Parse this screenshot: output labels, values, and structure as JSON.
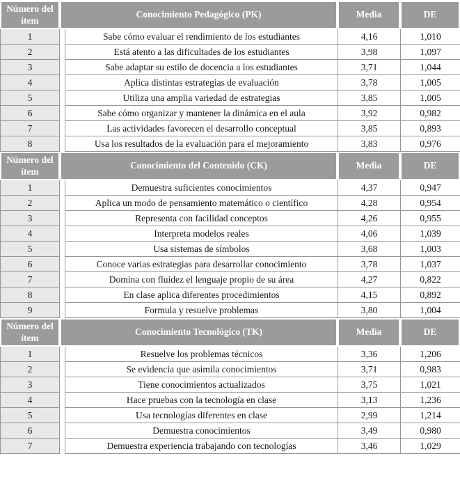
{
  "colors": {
    "header_bg": "#9b9b9b",
    "header_text": "#ffffff",
    "item_cell_bg": "#e8e8e8",
    "grid_border": "#969696",
    "body_text": "#1b1b1b"
  },
  "table": {
    "item_header": "Número del ítem",
    "media_header": "Media",
    "de_header": "DE",
    "sections": [
      {
        "title": "Conocimiento Pedagógico (PK)",
        "rows": [
          {
            "num": "1",
            "desc": "Sabe cómo evaluar el rendimiento de los estudiantes",
            "media": "4,16",
            "de": "1,010"
          },
          {
            "num": "2",
            "desc": "Está atento a las dificultades de los estudiantes",
            "media": "3,98",
            "de": "1,097"
          },
          {
            "num": "3",
            "desc": "Sabe adaptar su estilo de docencia a los estudiantes",
            "media": "3,71",
            "de": "1,044"
          },
          {
            "num": "4",
            "desc": "Aplica distintas estrategias de evaluación",
            "media": "3,78",
            "de": "1,005"
          },
          {
            "num": "5",
            "desc": "Utiliza una amplia variedad de estrategias",
            "media": "3,85",
            "de": "1,005"
          },
          {
            "num": "6",
            "desc": "Sabe cómo organizar y mantener la dinámica en el aula",
            "media": "3,92",
            "de": "0,982"
          },
          {
            "num": "7",
            "desc": "Las actividades favorecen el desarrollo conceptual",
            "media": "3,85",
            "de": "0,893"
          },
          {
            "num": "8",
            "desc": "Usa los resultados de la evaluación para el mejoramiento",
            "media": "3,83",
            "de": "0,976"
          }
        ]
      },
      {
        "title": "Conocimiento del Contenido (CK)",
        "rows": [
          {
            "num": "1",
            "desc": "Demuestra suficientes conocimientos",
            "media": "4,37",
            "de": "0,947"
          },
          {
            "num": "2",
            "desc": "Aplica un modo de pensamiento matemático o científico",
            "media": "4,28",
            "de": "0,954"
          },
          {
            "num": "3",
            "desc": "Representa con facilidad conceptos",
            "media": "4,26",
            "de": "0,955"
          },
          {
            "num": "4",
            "desc": "Interpreta modelos reales",
            "media": "4,06",
            "de": "1,039"
          },
          {
            "num": "5",
            "desc": "Usa sistemas de símbolos",
            "media": "3,68",
            "de": "1,003"
          },
          {
            "num": "6",
            "desc": "Conoce varias estrategias para desarrollar conocimiento",
            "media": "3,78",
            "de": "1,037"
          },
          {
            "num": "7",
            "desc": "Domina con fluidez el lenguaje propio de su área",
            "media": "4,27",
            "de": "0,822"
          },
          {
            "num": "8",
            "desc": "En clase aplica diferentes procedimientos",
            "media": "4,15",
            "de": "0,892"
          },
          {
            "num": "9",
            "desc": "Formula y resuelve problemas",
            "media": "3,80",
            "de": "1,004"
          }
        ]
      },
      {
        "title": "Conocimiento Tecnológico (TK)",
        "rows": [
          {
            "num": "1",
            "desc": "Resuelve los problemas técnicos",
            "media": "3,36",
            "de": "1,206"
          },
          {
            "num": "2",
            "desc": "Se evidencia que asimila conocimientos",
            "media": "3,71",
            "de": "0,983"
          },
          {
            "num": "3",
            "desc": "Tiene conocimientos actualizados",
            "media": "3,75",
            "de": "1,021"
          },
          {
            "num": "4",
            "desc": "Hace pruebas con la tecnología en clase",
            "media": "3,13",
            "de": "1,236"
          },
          {
            "num": "5",
            "desc": "Usa tecnologías diferentes en clase",
            "media": "2,99",
            "de": "1,214"
          },
          {
            "num": "6",
            "desc": "Demuestra conocimientos",
            "media": "3,49",
            "de": "0,980"
          },
          {
            "num": "7",
            "desc": "Demuestra experiencia trabajando con tecnologías",
            "media": "3,46",
            "de": "1,029"
          }
        ]
      }
    ]
  }
}
